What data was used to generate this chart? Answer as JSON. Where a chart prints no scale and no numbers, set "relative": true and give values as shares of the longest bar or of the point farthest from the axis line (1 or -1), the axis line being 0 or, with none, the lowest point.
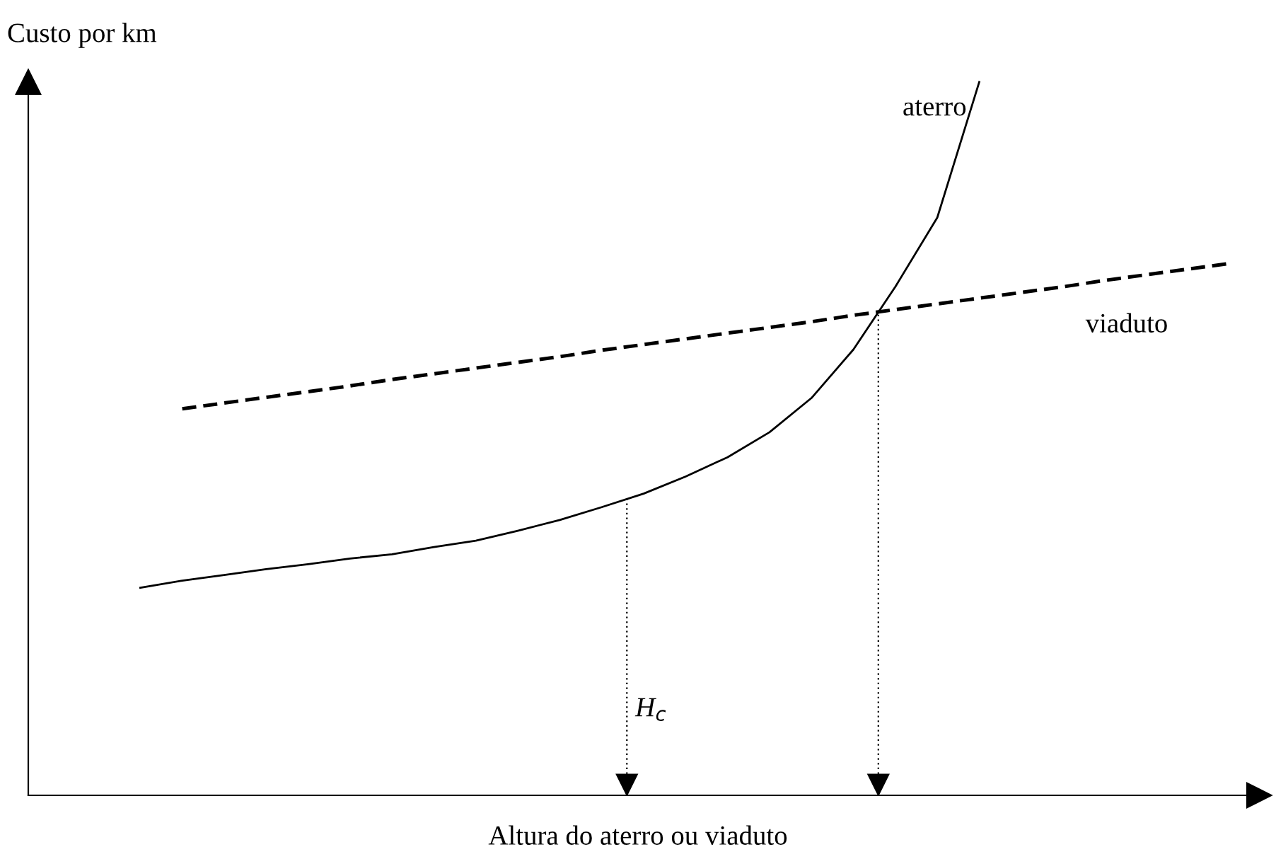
{
  "chart_data": {
    "type": "line",
    "relative": true,
    "xlabel": "Altura do aterro ou viaduto",
    "ylabel": "Custo por km",
    "legend": false,
    "marker": "none",
    "categories": [
      null,
      null,
      null,
      null,
      null,
      null,
      null,
      null,
      null,
      null,
      null,
      null,
      null,
      null,
      null,
      null,
      null,
      null,
      null,
      null,
      null,
      null,
      null,
      null,
      null,
      null,
      null
    ],
    "series": [
      {
        "name": "aterro",
        "color": "#000000",
        "line_style": "solid",
        "values": [
          0.291,
          0.301,
          0.309,
          0.317,
          0.324,
          0.332,
          0.338,
          0.348,
          0.357,
          0.371,
          0.386,
          0.404,
          0.423,
          0.447,
          0.474,
          0.509,
          0.557,
          0.625,
          0.713,
          0.81,
          1.0,
          null,
          null,
          null,
          null,
          null,
          null
        ]
      },
      {
        "name": "viaduto",
        "color": "#000000",
        "line_style": "dashed",
        "values": [
          null,
          0.542,
          0.55,
          0.558,
          0.566,
          0.574,
          0.583,
          0.591,
          0.599,
          0.607,
          0.615,
          0.624,
          0.632,
          0.64,
          0.648,
          0.656,
          0.664,
          0.673,
          0.681,
          0.689,
          0.697,
          0.705,
          0.713,
          0.722,
          0.73,
          0.738,
          0.746
        ]
      }
    ],
    "annotations": [
      "H$_{c}$"
    ]
  }
}
